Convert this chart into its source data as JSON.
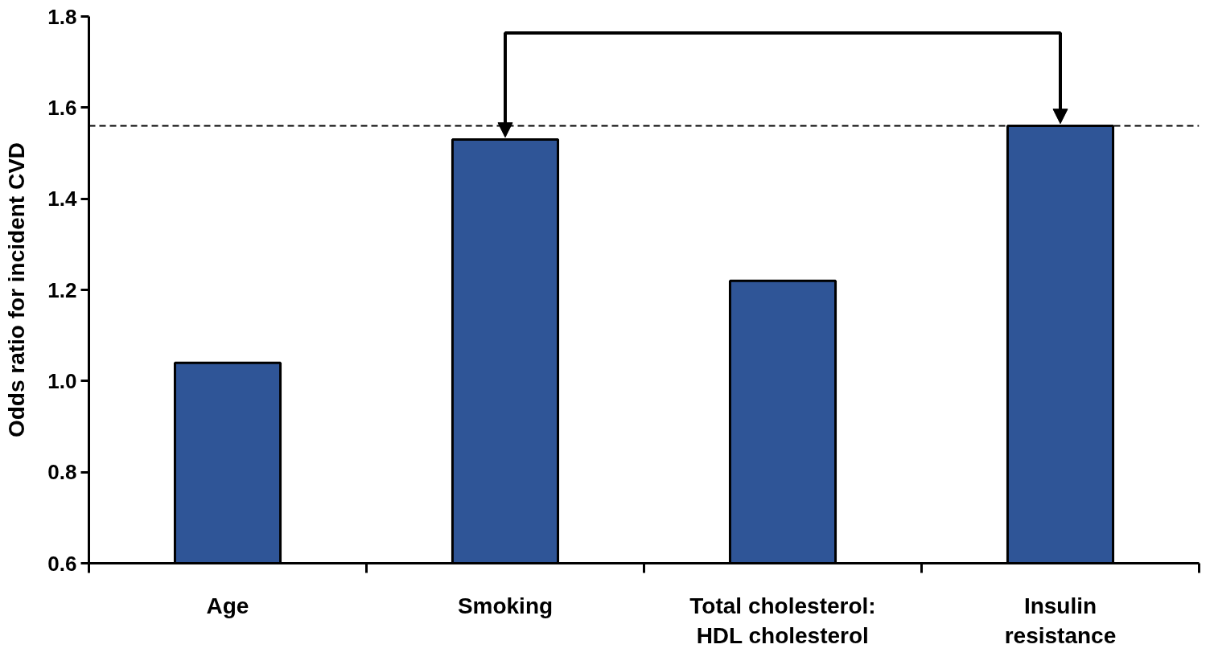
{
  "chart_data": {
    "type": "bar",
    "ylabel": "Odds ratio for incident CVD",
    "categories": [
      "Age",
      "Smoking",
      "Total cholesterol:\nHDL cholesterol",
      "Insulin\nresistance"
    ],
    "values": [
      1.04,
      1.53,
      1.22,
      1.56
    ],
    "color": "#2f5597",
    "ylim": [
      0.6,
      1.8
    ],
    "yticks": [
      {
        "value": 0.6,
        "label": "0.6"
      },
      {
        "value": 0.8,
        "label": "0.8"
      },
      {
        "value": 1.0,
        "label": "1.0"
      },
      {
        "value": 1.2,
        "label": "1.2"
      },
      {
        "value": 1.4,
        "label": "1.4"
      },
      {
        "value": 1.6,
        "label": "1.6"
      },
      {
        "value": 1.8,
        "label": "1.8"
      }
    ],
    "ref_lines": [
      {
        "axis": "y",
        "value": 1.56,
        "label": null,
        "color": "#000000",
        "line_style": "dashed"
      }
    ],
    "grid": false
  }
}
